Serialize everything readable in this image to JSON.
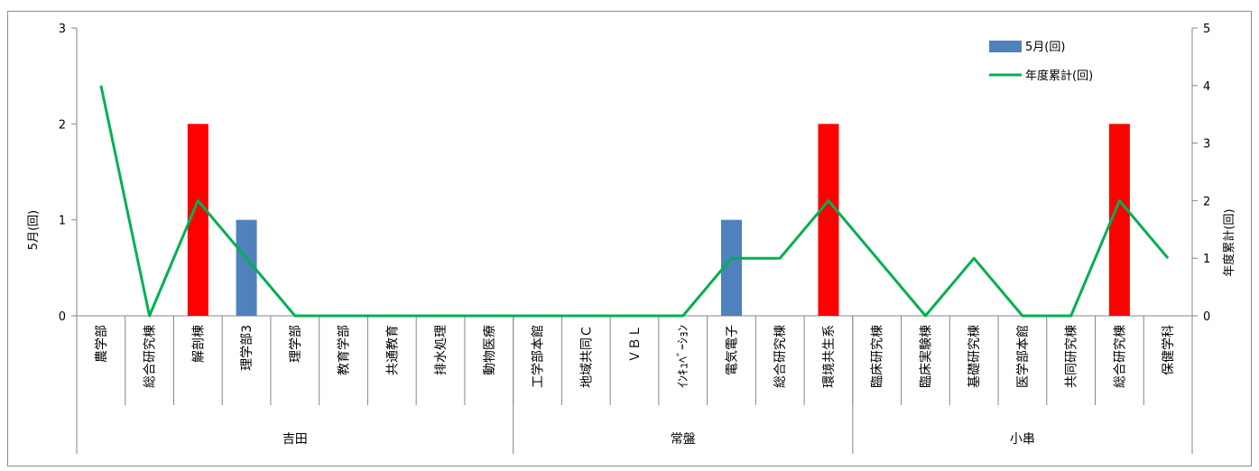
{
  "chart_data": {
    "type": "bar",
    "categories": [
      "農学部",
      "総合研究棟",
      "解剖棟",
      "理学部3",
      "理学部",
      "教育学部",
      "共通教育",
      "排水処理",
      "動物医療",
      "工学部本館",
      "地域共同Ｃ",
      "ＶＢＬ",
      "ｲﾝｷｭﾍﾞｰｼｮﾝ",
      "電気電子",
      "総合研究棟",
      "環境共生系",
      "臨床研究棟",
      "臨床実験棟",
      "基礎研究棟",
      "医学部本館",
      "共同研究棟",
      "総合研究棟",
      "保健学科"
    ],
    "groups": [
      {
        "label": "吉田",
        "start": 0,
        "end": 8
      },
      {
        "label": "常盤",
        "start": 9,
        "end": 15
      },
      {
        "label": "小串",
        "start": 16,
        "end": 22
      }
    ],
    "series": [
      {
        "name": "5月(回)",
        "kind": "bar",
        "axis": "left",
        "values": [
          0,
          0,
          2,
          1,
          0,
          0,
          0,
          0,
          0,
          0,
          0,
          0,
          0,
          1,
          0,
          2,
          0,
          0,
          0,
          0,
          0,
          2,
          0
        ]
      },
      {
        "name": "年度累計(回)",
        "kind": "line",
        "axis": "right",
        "values": [
          4,
          0,
          2,
          1,
          0,
          0,
          0,
          0,
          0,
          0,
          0,
          0,
          0,
          1,
          1,
          2,
          1,
          0,
          1,
          0,
          0,
          2,
          1
        ]
      }
    ],
    "highlight_color": "#ff0000",
    "bar_color": "#4f81bd",
    "line_color": "#00b050",
    "ylabel": "5月(回)",
    "y2label": "年度累計(回)",
    "ylim": [
      0,
      3
    ],
    "y2lim": [
      0,
      5
    ],
    "yticks": [
      "0",
      "1",
      "2",
      "3"
    ],
    "y2ticks": [
      "0",
      "1",
      "2",
      "3",
      "4",
      "5"
    ],
    "legend_position": "top-right"
  }
}
